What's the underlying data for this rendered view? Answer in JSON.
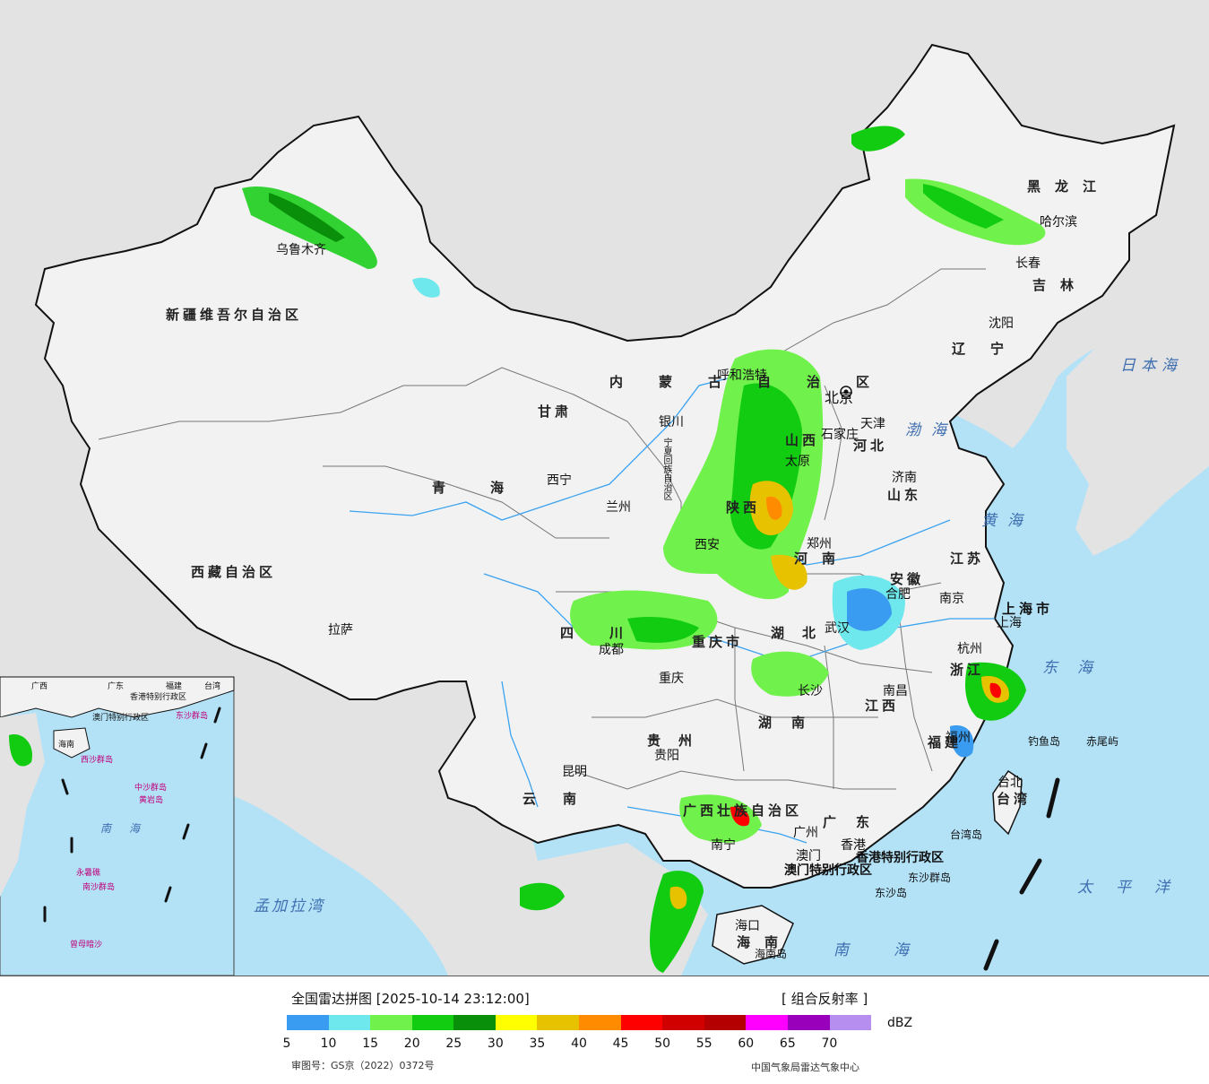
{
  "map": {
    "provinces": [
      {
        "id": "xinjiang",
        "label": "新疆维吾尔自治区"
      },
      {
        "id": "xizang",
        "label": "西藏自治区"
      },
      {
        "id": "qinghai",
        "label": "青海"
      },
      {
        "id": "gansu",
        "label": "甘肃"
      },
      {
        "id": "neimenggu",
        "label": "内蒙古自治区"
      },
      {
        "id": "heilongjiang",
        "label": "黑龙江"
      },
      {
        "id": "jilin",
        "label": "吉林"
      },
      {
        "id": "liaoning",
        "label": "辽宁"
      },
      {
        "id": "hebei",
        "label": "河北"
      },
      {
        "id": "shanxi",
        "label": "山西"
      },
      {
        "id": "shandong",
        "label": "山东"
      },
      {
        "id": "shaanxi",
        "label": "陕西"
      },
      {
        "id": "henan",
        "label": "河南"
      },
      {
        "id": "anhui",
        "label": "安徽"
      },
      {
        "id": "jiangsu",
        "label": "江苏"
      },
      {
        "id": "shanghai",
        "label": "上海市"
      },
      {
        "id": "zhejiang",
        "label": "浙江"
      },
      {
        "id": "hubei",
        "label": "湖北"
      },
      {
        "id": "hunan",
        "label": "湖南"
      },
      {
        "id": "jiangxi",
        "label": "江西"
      },
      {
        "id": "fujian",
        "label": "福建"
      },
      {
        "id": "sichuan",
        "label": "四川"
      },
      {
        "id": "chongqing",
        "label": "重庆市"
      },
      {
        "id": "guizhou",
        "label": "贵州"
      },
      {
        "id": "yunnan",
        "label": "云南"
      },
      {
        "id": "guangxi",
        "label": "广西壮族自治区"
      },
      {
        "id": "guangdong",
        "label": "广东"
      },
      {
        "id": "hainan",
        "label": "海南"
      },
      {
        "id": "taiwan",
        "label": "台湾"
      },
      {
        "id": "ningxia",
        "label": "宁夏回族自治区"
      },
      {
        "id": "hongkong",
        "label": "香港特别行政区"
      },
      {
        "id": "macao",
        "label": "澳门特别行政区"
      }
    ],
    "cities": [
      {
        "id": "urumqi",
        "label": "乌鲁木齐"
      },
      {
        "id": "lhasa",
        "label": "拉萨"
      },
      {
        "id": "xining",
        "label": "西宁"
      },
      {
        "id": "lanzhou",
        "label": "兰州"
      },
      {
        "id": "yinchuan",
        "label": "银川"
      },
      {
        "id": "hohhot",
        "label": "呼和浩特"
      },
      {
        "id": "harbin",
        "label": "哈尔滨"
      },
      {
        "id": "changchun",
        "label": "长春"
      },
      {
        "id": "shenyang",
        "label": "沈阳"
      },
      {
        "id": "beijing",
        "label": "北京"
      },
      {
        "id": "tianjin",
        "label": "天津"
      },
      {
        "id": "shijiazhuang",
        "label": "石家庄"
      },
      {
        "id": "taiyuan",
        "label": "太原"
      },
      {
        "id": "jinan",
        "label": "济南"
      },
      {
        "id": "zhengzhou",
        "label": "郑州"
      },
      {
        "id": "xian",
        "label": "西安"
      },
      {
        "id": "hefei",
        "label": "合肥"
      },
      {
        "id": "nanjing",
        "label": "南京"
      },
      {
        "id": "shanghai-city",
        "label": "上海"
      },
      {
        "id": "hangzhou",
        "label": "杭州"
      },
      {
        "id": "wuhan",
        "label": "武汉"
      },
      {
        "id": "changsha",
        "label": "长沙"
      },
      {
        "id": "nanchang",
        "label": "南昌"
      },
      {
        "id": "fuzhou",
        "label": "福州"
      },
      {
        "id": "chengdu",
        "label": "成都"
      },
      {
        "id": "chongqing-city",
        "label": "重庆"
      },
      {
        "id": "guiyang",
        "label": "贵阳"
      },
      {
        "id": "kunming",
        "label": "昆明"
      },
      {
        "id": "nanning",
        "label": "南宁"
      },
      {
        "id": "guangzhou",
        "label": "广州"
      },
      {
        "id": "hongkong-city",
        "label": "香港"
      },
      {
        "id": "macao-city",
        "label": "澳门"
      },
      {
        "id": "haikou",
        "label": "海口"
      },
      {
        "id": "taipei",
        "label": "台北"
      }
    ],
    "seas": [
      {
        "id": "bohai",
        "label": "渤海"
      },
      {
        "id": "yellow-sea",
        "label": "黄海"
      },
      {
        "id": "east-sea",
        "label": "东海"
      },
      {
        "id": "south-sea",
        "label": "南海"
      },
      {
        "id": "pacific",
        "label": "太平洋"
      },
      {
        "id": "japan-sea",
        "label": "日本海"
      },
      {
        "id": "bengal",
        "label": "孟加拉湾"
      }
    ],
    "islands": [
      {
        "id": "diaoyu",
        "label": "钓鱼岛"
      },
      {
        "id": "chiwei",
        "label": "赤尾屿"
      },
      {
        "id": "taiwan-island",
        "label": "台湾岛"
      },
      {
        "id": "hainan-island",
        "label": "海南岛"
      },
      {
        "id": "dongsha-qundao",
        "label": "东沙群岛"
      },
      {
        "id": "dongsha-dao",
        "label": "东沙岛"
      }
    ],
    "inset": {
      "labels": [
        {
          "id": "inset-guangxi",
          "label": "广西"
        },
        {
          "id": "inset-guangdong",
          "label": "广东"
        },
        {
          "id": "inset-fujian",
          "label": "福建"
        },
        {
          "id": "inset-taiwan",
          "label": "台湾"
        },
        {
          "id": "inset-hongkong",
          "label": "香港特别行政区"
        },
        {
          "id": "inset-macao",
          "label": "澳门特别行政区"
        },
        {
          "id": "inset-dongsha",
          "label": "东沙群岛"
        },
        {
          "id": "inset-hainan",
          "label": "海南"
        },
        {
          "id": "inset-xisha",
          "label": "西沙群岛"
        },
        {
          "id": "inset-zhongsha",
          "label": "中沙群岛"
        },
        {
          "id": "inset-huangyan",
          "label": "黄岩岛"
        },
        {
          "id": "inset-nanhai",
          "label": "南海"
        },
        {
          "id": "inset-yongshu",
          "label": "永暑礁"
        },
        {
          "id": "inset-nansha",
          "label": "南沙群岛"
        },
        {
          "id": "inset-zengmu",
          "label": "曾母暗沙"
        }
      ]
    },
    "colors": {
      "ocean": "#b3e2f7",
      "land_china": "#f2f2f2",
      "land_foreign": "#e3e3e3",
      "border": "#111111",
      "river": "#3aa3f0"
    }
  },
  "legend": {
    "title": "全国雷达拼图 [2025-10-14 23:12:00]",
    "product": "[ 组合反射率 ]",
    "unit": "dBZ",
    "approval": "审图号：GS京（2022）0372号",
    "credit": "中国气象局雷达气象中心",
    "ticks": [
      "5",
      "10",
      "15",
      "20",
      "25",
      "30",
      "35",
      "40",
      "45",
      "50",
      "55",
      "60",
      "65",
      "70"
    ],
    "colors": [
      "#3a9cf0",
      "#6ee8ec",
      "#71f14c",
      "#12cc12",
      "#0a8f0a",
      "#ffff00",
      "#e6c200",
      "#ff8c00",
      "#ff0000",
      "#d10000",
      "#b40000",
      "#ff00ff",
      "#9900bb",
      "#b58ef0"
    ]
  }
}
